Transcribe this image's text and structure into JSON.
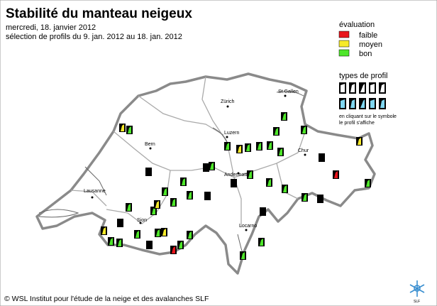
{
  "header": {
    "title": "Stabilité du manteau neigeux",
    "date": "mercredi, 18. janvier 2012",
    "selection": "sélection de profils du 9. jan. 2012 au 18. jan. 2012"
  },
  "legend": {
    "evaluation": {
      "title": "évaluation",
      "items": [
        {
          "label": "faible",
          "color": "#e8141c"
        },
        {
          "label": "moyen",
          "color": "#f6ea2a"
        },
        {
          "label": "bon",
          "color": "#4ee62a"
        }
      ]
    },
    "profile_types": {
      "title": "types de profil",
      "note": [
        "en cliquant sur le symbole",
        "le profil s'affiche"
      ]
    }
  },
  "cities": [
    "St.Gallen",
    "Zürich",
    "Luzern",
    "Bern",
    "Chur",
    "Andermatt",
    "Lausanne",
    "Sion",
    "Locarno"
  ],
  "footer": {
    "copyright": "© WSL Institut pour l'étude de la neige et des avalanches SLF",
    "logo": "SLF"
  }
}
